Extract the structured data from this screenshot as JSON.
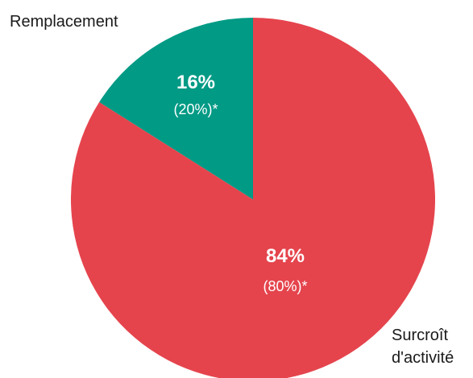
{
  "chart_data": {
    "type": "pie",
    "categories": [
      "Surcroît d'activité",
      "Remplacement"
    ],
    "values": [
      84,
      16
    ],
    "value_labels": [
      "84%",
      "16%"
    ],
    "secondary_labels": [
      "(80%)*",
      "(20%)*"
    ],
    "colors": [
      "#e5444d",
      "#009a85"
    ],
    "category_label_lines": [
      [
        "Surcroît",
        "d'activité"
      ],
      [
        "Remplacement"
      ]
    ],
    "start_angle_deg": 0,
    "direction": "clockwise",
    "legend": "none"
  }
}
